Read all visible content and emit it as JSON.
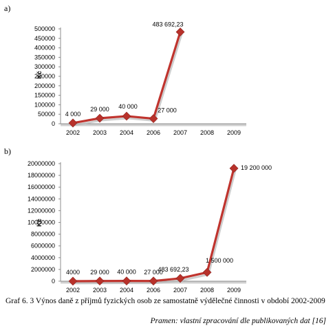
{
  "caption": "Graf 6. 3 Výnos daně z příjmů fyzických osob ze samostatně výdělečné činnosti v období 2002-2009",
  "source": "Pramen: vlastní zpracování dle publikovaných dat [16]",
  "colors": {
    "line": "#c0342e",
    "marker": "#b8322b",
    "axis": "#8c8c8c"
  },
  "chart_data": [
    {
      "type": "line",
      "panel": "a)",
      "title": "",
      "xlabel": "",
      "ylabel": "Kč",
      "categories": [
        "2002",
        "2003",
        "2004",
        "2006",
        "2007",
        "2008",
        "2009"
      ],
      "values": [
        4000,
        29000,
        40000,
        27000,
        483692.23,
        null,
        null
      ],
      "data_labels": [
        "4 000",
        "29 000",
        "40 000",
        "27 000",
        "483 692,23",
        "",
        ""
      ],
      "yticks": [
        "0",
        "50000",
        "100000",
        "150000",
        "200000",
        "250000",
        "300000",
        "350000",
        "400000",
        "450000",
        "500000"
      ],
      "ylim": [
        0,
        500000
      ],
      "grid": false,
      "legend": "none"
    },
    {
      "type": "line",
      "panel": "b)",
      "title": "",
      "xlabel": "",
      "ylabel": "Kč",
      "categories": [
        "2002",
        "2003",
        "2004",
        "2006",
        "2007",
        "2008",
        "2009"
      ],
      "values": [
        4000,
        29000,
        40000,
        27000,
        483692.23,
        1500000,
        19200000
      ],
      "data_labels": [
        "4000",
        "29 000",
        "40 000",
        "27 000",
        "483 692,23",
        "1 500 000",
        "19 200 000"
      ],
      "yticks": [
        "0",
        "2000000",
        "4000000",
        "6000000",
        "8000000",
        "10000000",
        "12000000",
        "14000000",
        "16000000",
        "18000000",
        "20000000"
      ],
      "ylim": [
        0,
        20000000
      ],
      "grid": false,
      "legend": "none"
    }
  ]
}
